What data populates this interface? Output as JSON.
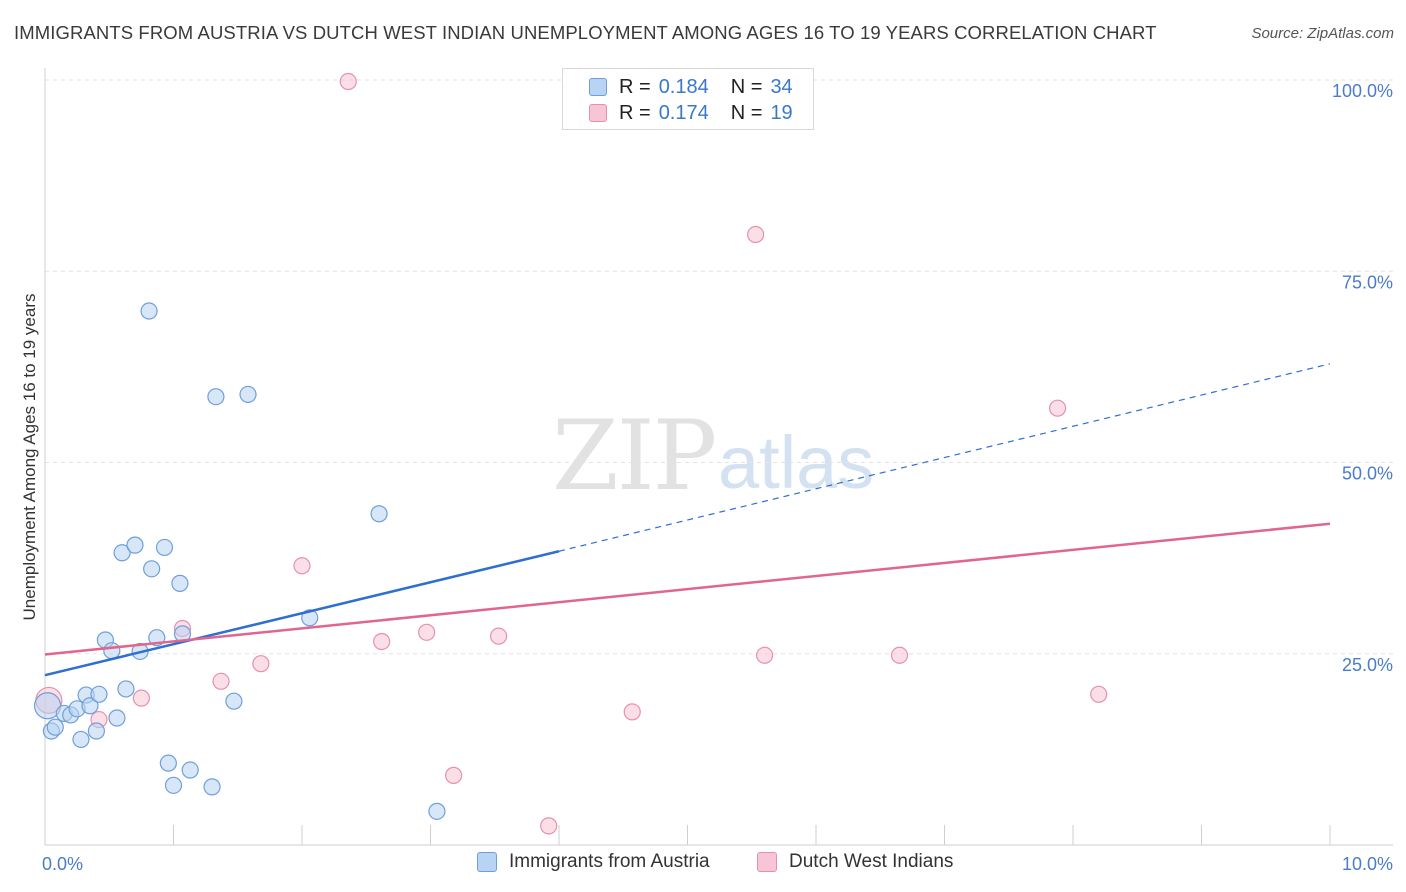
{
  "header": {
    "title": "IMMIGRANTS FROM AUSTRIA VS DUTCH WEST INDIAN UNEMPLOYMENT AMONG AGES 16 TO 19 YEARS CORRELATION CHART",
    "source": "Source: ZipAtlas.com"
  },
  "watermark": {
    "zip": "ZIP",
    "atlas": "atlas"
  },
  "legend": {
    "rows": [
      {
        "r_label": "R =",
        "r_value": "0.184",
        "n_label": "N =",
        "n_value": "34"
      },
      {
        "r_label": "R =",
        "r_value": "0.174",
        "n_label": "N =",
        "n_value": "19"
      }
    ]
  },
  "bottom_legend": {
    "series1": "Immigrants from Austria",
    "series2": "Dutch West Indians"
  },
  "chart_data": {
    "type": "scatter",
    "title": "IMMIGRANTS FROM AUSTRIA VS DUTCH WEST INDIAN UNEMPLOYMENT AMONG AGES 16 TO 19 YEARS CORRELATION CHART",
    "xlabel": "",
    "ylabel": "Unemployment Among Ages 16 to 19 years",
    "xlim": [
      0,
      10
    ],
    "ylim": [
      0,
      100
    ],
    "x_tick_labels": [
      "0.0%",
      "10.0%"
    ],
    "y_tick_values": [
      25,
      50,
      75,
      100
    ],
    "y_tick_labels": [
      "25.0%",
      "50.0%",
      "75.0%",
      "100.0%"
    ],
    "colors": {
      "series1_fill": "#b8d3f3",
      "series1_stroke": "#6f9fd8",
      "series1_line": "#2e6fd0",
      "series2_fill": "#f8c5d4",
      "series2_stroke": "#e591ad",
      "series2_line": "#e06690",
      "grid": "#e3e3e3",
      "axis_text": "#4a7cc7"
    },
    "series": [
      {
        "name": "Immigrants from Austria",
        "R": 0.184,
        "N": 34,
        "trend": {
          "x0": 0,
          "y0": 22.2,
          "x1": 4,
          "y1": 38.4,
          "dashed_to_x": 10,
          "dashed_to_y": 62.9
        },
        "points": [
          [
            0.02,
            18.2
          ],
          [
            0.05,
            14.9
          ],
          [
            0.08,
            15.4
          ],
          [
            0.15,
            17.2
          ],
          [
            0.2,
            17.0
          ],
          [
            0.25,
            17.8
          ],
          [
            0.28,
            13.8
          ],
          [
            0.32,
            19.6
          ],
          [
            0.35,
            18.2
          ],
          [
            0.4,
            14.9
          ],
          [
            0.42,
            19.7
          ],
          [
            0.47,
            26.8
          ],
          [
            0.52,
            25.4
          ],
          [
            0.56,
            16.6
          ],
          [
            0.6,
            38.2
          ],
          [
            0.63,
            20.4
          ],
          [
            0.7,
            39.2
          ],
          [
            0.74,
            25.3
          ],
          [
            0.81,
            69.8
          ],
          [
            0.83,
            36.1
          ],
          [
            0.87,
            27.1
          ],
          [
            0.93,
            38.9
          ],
          [
            0.96,
            10.7
          ],
          [
            1.0,
            7.8
          ],
          [
            1.05,
            34.2
          ],
          [
            1.07,
            27.6
          ],
          [
            1.13,
            9.8
          ],
          [
            1.3,
            7.6
          ],
          [
            1.33,
            58.6
          ],
          [
            1.47,
            18.8
          ],
          [
            1.58,
            58.9
          ],
          [
            2.06,
            29.7
          ],
          [
            2.6,
            43.3
          ],
          [
            3.05,
            4.4
          ]
        ]
      },
      {
        "name": "Dutch West Indians",
        "R": 0.174,
        "N": 19,
        "trend": {
          "x0": 0,
          "y0": 24.9,
          "x1": 10,
          "y1": 42.0
        },
        "points": [
          [
            0.03,
            18.9
          ],
          [
            0.42,
            16.4
          ],
          [
            0.75,
            19.2
          ],
          [
            1.07,
            28.3
          ],
          [
            1.37,
            21.4
          ],
          [
            1.68,
            23.7
          ],
          [
            2.0,
            36.5
          ],
          [
            2.36,
            99.8
          ],
          [
            2.62,
            26.6
          ],
          [
            2.97,
            27.8
          ],
          [
            3.18,
            9.1
          ],
          [
            3.53,
            27.3
          ],
          [
            3.92,
            2.5
          ],
          [
            4.57,
            17.4
          ],
          [
            5.53,
            79.8
          ],
          [
            5.6,
            24.8
          ],
          [
            6.65,
            24.8
          ],
          [
            7.88,
            57.1
          ],
          [
            8.2,
            19.7
          ]
        ]
      }
    ]
  }
}
